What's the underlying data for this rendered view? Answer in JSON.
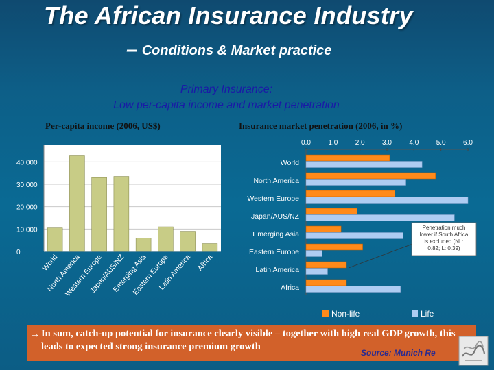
{
  "slide": {
    "title": "The African Insurance Industry",
    "subtitle_dash": "–",
    "subtitle": "Conditions & Market practice",
    "primary_line1": "Primary Insurance:",
    "primary_line2": "Low per-capita income and market penetration",
    "summary_arrow": "→",
    "summary": "In sum, catch-up potential for insurance clearly visible – together with high real GDP growth, this leads to expected strong insurance premium growth",
    "source": "Source: Munich Re"
  },
  "colors": {
    "bar_income": "#c8cc86",
    "non_life": "#ff8a1a",
    "life": "#aeccf2",
    "accent_box": "#d2612a",
    "title_text": "#ffffff",
    "primary_text": "#1a1aa6"
  },
  "chart_data": [
    {
      "type": "bar",
      "title": "Per-capita income (2006, US$)",
      "categories": [
        "World",
        "North America",
        "Western Europe",
        "Japan/AUS/NZ",
        "Emerging Asia",
        "Eastern Europe",
        "Latin America",
        "Africa"
      ],
      "values": [
        10500,
        43000,
        33000,
        33500,
        6000,
        11000,
        9000,
        3500
      ],
      "yticks": [
        0,
        10000,
        20000,
        30000,
        40000
      ],
      "ytick_labels": [
        "0",
        "10,000",
        "20,000",
        "30,000",
        "40,000"
      ],
      "ylim": [
        0,
        45000
      ],
      "grid": true
    },
    {
      "type": "bar",
      "orientation": "horizontal",
      "title": "Insurance market penetration (2006, in %)",
      "categories": [
        "World",
        "North America",
        "Western Europe",
        "Japan/AUS/NZ",
        "Emerging Asia",
        "Eastern Europe",
        "Latin America",
        "Africa"
      ],
      "series": [
        {
          "name": "Non-life",
          "values": [
            3.1,
            4.8,
            3.3,
            1.9,
            1.3,
            2.1,
            1.5,
            1.5
          ]
        },
        {
          "name": "Life",
          "values": [
            4.3,
            3.7,
            6.0,
            5.5,
            3.6,
            0.6,
            0.8,
            3.5
          ]
        }
      ],
      "xticks": [
        0,
        1,
        2,
        3,
        4,
        5,
        6
      ],
      "xtick_labels": [
        "0.0",
        "1.0",
        "2.0",
        "3.0",
        "4.0",
        "5.0",
        "6.0"
      ],
      "xlim": [
        0,
        6
      ],
      "legend": "bottom",
      "annotation": "Penetration much lower if South Africa is excluded (NL: 0.82; L: 0.39)"
    }
  ]
}
